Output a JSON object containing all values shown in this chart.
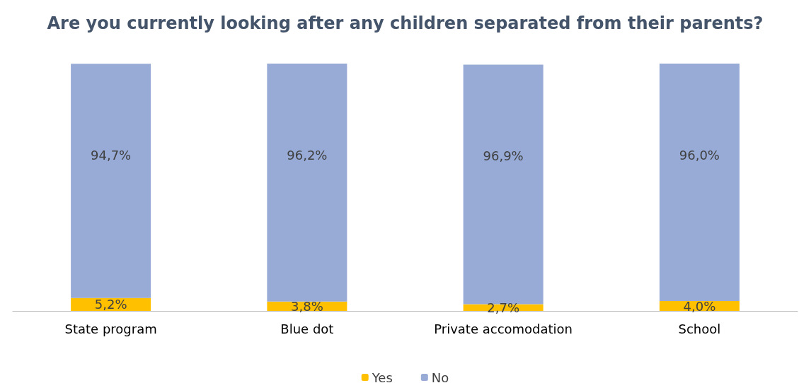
{
  "chart_data": {
    "type": "bar",
    "title": "Are you currently looking after any children separated from their parents?",
    "categories": [
      "State program",
      "Blue dot",
      "Private accomodation",
      "School"
    ],
    "stacked": true,
    "legend": "bottom",
    "grid": false,
    "series": [
      {
        "name": "Yes",
        "color": "#ffc000",
        "values": [
          5.2,
          3.8,
          2.7,
          4.0
        ],
        "value_labels": [
          "5,2%",
          "3,8%",
          "2,7%",
          "4,0%"
        ]
      },
      {
        "name": "No",
        "color": "#97abd6",
        "values": [
          94.7,
          96.2,
          96.9,
          96.0
        ],
        "value_labels": [
          "94,7%",
          "96,2%",
          "96,9%",
          "96,0%"
        ]
      }
    ]
  }
}
